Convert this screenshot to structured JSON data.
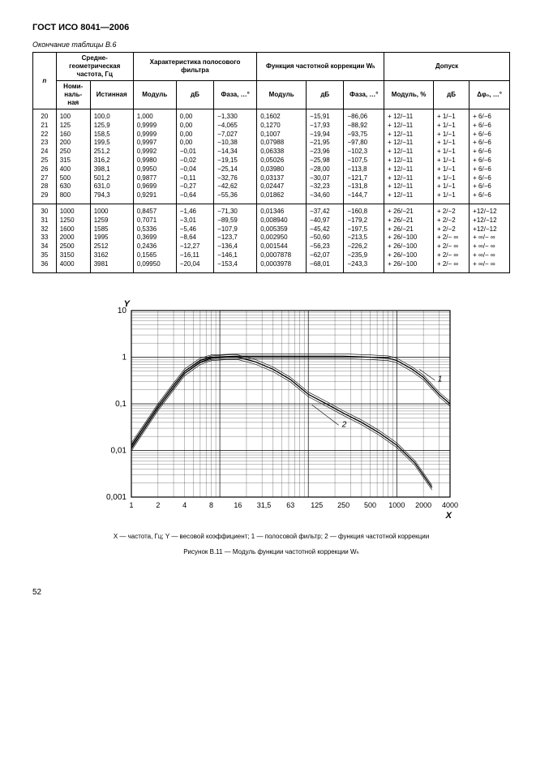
{
  "doc_header": "ГОСТ ИСО 8041—2006",
  "table_caption": "Окончание таблицы В.6",
  "page_number": "52",
  "headers": {
    "n": "n",
    "freq_group": "Средне-геометрическая частота, Гц",
    "filter_group": "Характеристика полосового фильтра",
    "corr_group": "Функция частотной коррекции Wₕ",
    "tol_group": "Допуск",
    "nominal": "Номи-наль-ная",
    "true": "Истинная",
    "modulus": "Модуль",
    "db": "дБ",
    "phase": "Фаза, …°",
    "mod_pct": "Модуль, %",
    "dphi": "Δφ₀, …°"
  },
  "rows_a": [
    [
      "20",
      "100",
      "100,0",
      "1,000",
      "0,00",
      "−1,330",
      "0,1602",
      "−15,91",
      "−86,06",
      "+ 12/−11",
      "+ 1/−1",
      "+ 6/−6"
    ],
    [
      "21",
      "125",
      "125,9",
      "0,9999",
      "0,00",
      "−4,065",
      "0,1270",
      "−17,93",
      "−88,92",
      "+ 12/−11",
      "+ 1/−1",
      "+ 6/−6"
    ],
    [
      "22",
      "160",
      "158,5",
      "0,9999",
      "0,00",
      "−7,027",
      "0,1007",
      "−19,94",
      "−93,75",
      "+ 12/−11",
      "+ 1/−1",
      "+ 6/−6"
    ],
    [
      "23",
      "200",
      "199,5",
      "0,9997",
      "0,00",
      "−10,38",
      "0,07988",
      "−21,95",
      "−97,80",
      "+ 12/−11",
      "+ 1/−1",
      "+ 6/−6"
    ],
    [
      "24",
      "250",
      "251,2",
      "0,9992",
      "−0,01",
      "−14,34",
      "0,06338",
      "−23,96",
      "−102,3",
      "+ 12/−11",
      "+ 1/−1",
      "+ 6/−6"
    ],
    [
      "25",
      "315",
      "316,2",
      "0,9980",
      "−0,02",
      "−19,15",
      "0,05026",
      "−25,98",
      "−107,5",
      "+ 12/−11",
      "+ 1/−1",
      "+ 6/−6"
    ],
    [
      "26",
      "400",
      "398,1",
      "0,9950",
      "−0,04",
      "−25,14",
      "0,03980",
      "−28,00",
      "−113,8",
      "+ 12/−11",
      "+ 1/−1",
      "+ 6/−6"
    ],
    [
      "27",
      "500",
      "501,2",
      "0,9877",
      "−0,11",
      "−32,76",
      "0,03137",
      "−30,07",
      "−121,7",
      "+ 12/−11",
      "+ 1/−1",
      "+ 6/−6"
    ],
    [
      "28",
      "630",
      "631,0",
      "0,9699",
      "−0,27",
      "−42,62",
      "0,02447",
      "−32,23",
      "−131,8",
      "+ 12/−11",
      "+ 1/−1",
      "+ 6/−6"
    ],
    [
      "29",
      "800",
      "794,3",
      "0,9291",
      "−0,64",
      "−55,36",
      "0,01862",
      "−34,60",
      "−144,7",
      "+ 12/−11",
      "+ 1/−1",
      "+ 6/−6"
    ]
  ],
  "rows_b": [
    [
      "30",
      "1000",
      "1000",
      "0,8457",
      "−1,46",
      "−71,30",
      "0,01346",
      "−37,42",
      "−160,8",
      "+ 26/−21",
      "+ 2/−2",
      "+12/−12"
    ],
    [
      "31",
      "1250",
      "1259",
      "0,7071",
      "−3,01",
      "−89,59",
      "0,008940",
      "−40,97",
      "−179,2",
      "+ 26/−21",
      "+ 2/−2",
      "+12/−12"
    ],
    [
      "32",
      "1600",
      "1585",
      "0,5336",
      "−5,46",
      "−107,9",
      "0,005359",
      "−45,42",
      "−197,5",
      "+ 26/−21",
      "+ 2/−2",
      "+12/−12"
    ],
    [
      "33",
      "2000",
      "1995",
      "0,3699",
      "−8,64",
      "−123,7",
      "0,002950",
      "−50,60",
      "−213,5",
      "+ 26/−100",
      "+ 2/− ∞",
      "+ ∞/− ∞"
    ],
    [
      "34",
      "2500",
      "2512",
      "0,2436",
      "−12,27",
      "−136,4",
      "0,001544",
      "−56,23",
      "−226,2",
      "+ 26/−100",
      "+ 2/− ∞",
      "+ ∞/− ∞"
    ],
    [
      "35",
      "3150",
      "3162",
      "0,1565",
      "−16,11",
      "−146,1",
      "0,0007878",
      "−62,07",
      "−235,9",
      "+ 26/−100",
      "+ 2/− ∞",
      "+ ∞/− ∞"
    ],
    [
      "36",
      "4000",
      "3981",
      "0,09950",
      "−20,04",
      "−153,4",
      "0,0003978",
      "−68,01",
      "−243,3",
      "+ 26/−100",
      "+ 2/− ∞",
      "+ ∞/− ∞"
    ]
  ],
  "figure": {
    "x_label": "X",
    "y_label": "Y",
    "y_ticks": [
      "10",
      "1",
      "0,1",
      "0,01",
      "0,001"
    ],
    "x_ticks": [
      "1",
      "2",
      "4",
      "8",
      "16",
      "31,5",
      "63",
      "125",
      "250",
      "500",
      "1000",
      "2000",
      "4000"
    ],
    "curve1_label": "1",
    "curve2_label": "2",
    "legend": "X — частота, Гц; Y — весовой коэффициент; 1 — полосовой фильтр; 2 — функция частотной коррекции",
    "caption": "Рисунок В.11 — Модуль функции частотной коррекции Wₕ"
  }
}
